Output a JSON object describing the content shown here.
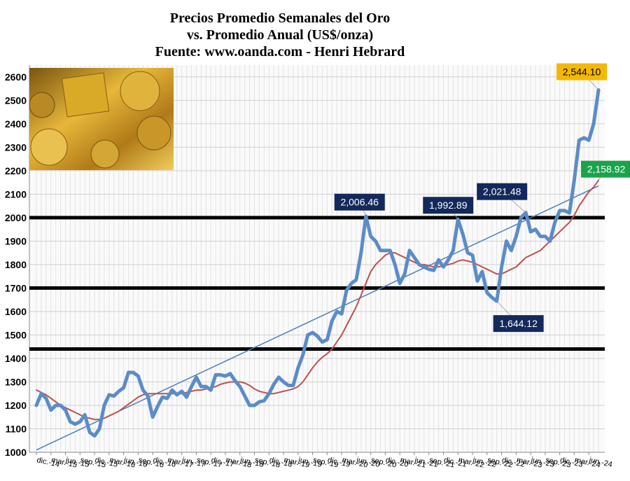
{
  "chart_data": {
    "type": "line",
    "title": [
      "Precios Promedio Semanales del Oro",
      "vs. Promedio Anual (US$/onza)",
      "Fuente: www.oanda.com - Henri Hebrard"
    ],
    "categories": [
      "dic.-14",
      null,
      null,
      "mar.-15",
      null,
      null,
      "jun.-15",
      null,
      null,
      "sep.-15",
      null,
      null,
      "dic.-15",
      null,
      null,
      "mar.-16",
      null,
      null,
      "jun.-16",
      null,
      null,
      "sep.-16",
      null,
      null,
      "dic.-16",
      null,
      null,
      "mar.-17",
      null,
      null,
      "jun.-17",
      null,
      null,
      "sep.-17",
      null,
      null,
      "dic.-17",
      null,
      null,
      "mar.-18",
      null,
      null,
      "jun.-18",
      null,
      null,
      "sep.-18",
      null,
      null,
      "dic.-18",
      null,
      null,
      "mar.-19",
      null,
      null,
      "jun.-19",
      null,
      null,
      "sep.-19",
      null,
      null,
      "dic.-19",
      null,
      null,
      "mar.-20",
      null,
      null,
      "jun.-20",
      null,
      null,
      "sep.-20",
      null,
      null,
      "dic.-20",
      null,
      null,
      "mar.-21",
      null,
      null,
      "jun.-21",
      null,
      null,
      "sep.-21",
      null,
      null,
      "dic.-21",
      null,
      null,
      "mar.-22",
      null,
      null,
      "jun.-22",
      null,
      null,
      "sep.-22",
      null,
      null,
      "dic.-22",
      null,
      null,
      "mar.-23",
      null,
      null,
      "jun.-23",
      null,
      null,
      "sep.-23",
      null,
      null,
      "dic.-23",
      null,
      null,
      "mar.-24",
      null,
      null,
      "jun.-24",
      null,
      null
    ],
    "series": [
      {
        "color": "#5b8cc8",
        "width": 5,
        "values": [
          1200,
          1250,
          1230,
          1180,
          1200,
          1200,
          1180,
          1130,
          1120,
          1130,
          1160,
          1085,
          1070,
          1100,
          1200,
          1245,
          1240,
          1260,
          1275,
          1340,
          1340,
          1325,
          1265,
          1240,
          1150,
          1195,
          1235,
          1230,
          1265,
          1245,
          1260,
          1235,
          1280,
          1320,
          1280,
          1280,
          1265,
          1330,
          1330,
          1325,
          1335,
          1305,
          1280,
          1240,
          1200,
          1200,
          1215,
          1220,
          1250,
          1290,
          1320,
          1300,
          1285,
          1285,
          1360,
          1415,
          1500,
          1510,
          1495,
          1470,
          1480,
          1560,
          1600,
          1590,
          1690,
          1720,
          1735,
          1850,
          2006.46,
          1920,
          1900,
          1860,
          1860,
          1860,
          1800,
          1720,
          1760,
          1860,
          1830,
          1800,
          1790,
          1780,
          1775,
          1820,
          1790,
          1820,
          1860,
          1992.89,
          1930,
          1850,
          1840,
          1730,
          1770,
          1680,
          1660,
          1644.12,
          1790,
          1900,
          1860,
          1920,
          2000,
          2021.48,
          1940,
          1950,
          1920,
          1920,
          1900,
          1980,
          2030,
          2030,
          2020,
          2160,
          2330,
          2340,
          2330,
          2400,
          2544.1
        ]
      },
      {
        "color": "#c0504d",
        "width": 2,
        "values": [
          1265,
          1255,
          1245,
          1230,
          1215,
          1200,
          1190,
          1180,
          1170,
          1160,
          1150,
          1145,
          1140,
          1140,
          1145,
          1155,
          1165,
          1175,
          1190,
          1205,
          1220,
          1235,
          1245,
          1250,
          1250,
          1250,
          1250,
          1250,
          1250,
          1250,
          1250,
          1255,
          1260,
          1265,
          1265,
          1270,
          1275,
          1280,
          1290,
          1295,
          1300,
          1300,
          1300,
          1295,
          1285,
          1270,
          1260,
          1255,
          1250,
          1250,
          1255,
          1260,
          1265,
          1270,
          1280,
          1300,
          1330,
          1360,
          1385,
          1405,
          1420,
          1440,
          1470,
          1500,
          1540,
          1580,
          1620,
          1670,
          1720,
          1770,
          1800,
          1820,
          1840,
          1850,
          1850,
          1840,
          1830,
          1820,
          1810,
          1800,
          1800,
          1795,
          1790,
          1790,
          1795,
          1800,
          1805,
          1815,
          1820,
          1815,
          1810,
          1800,
          1790,
          1780,
          1770,
          1760,
          1760,
          1770,
          1780,
          1790,
          1810,
          1830,
          1840,
          1850,
          1860,
          1880,
          1900,
          1920,
          1940,
          1960,
          1980,
          2010,
          2050,
          2080,
          2110,
          2130,
          2158.92
        ]
      }
    ],
    "trendline": {
      "color": "#4a7ebb",
      "values": [
        1010,
        2135
      ]
    },
    "hlines": {
      "color": "#000000",
      "values": [
        2000,
        1700,
        1440
      ]
    },
    "annotations": [
      {
        "text": "2,544.10",
        "value": 2544.1,
        "series": 0,
        "color": "#f5b800",
        "text_color": "#000000"
      },
      {
        "text": "2,158.92",
        "value": 2158.92,
        "series": 1,
        "color": "#1aa34a",
        "text_color": "#ffffff"
      },
      {
        "text": "2,006.46",
        "value": 2006.46,
        "series": 0,
        "color": "#13295b",
        "text_color": "#ffffff"
      },
      {
        "text": "1,992.89",
        "value": 1992.89,
        "series": 0,
        "color": "#13295b",
        "text_color": "#ffffff"
      },
      {
        "text": "2,021.48",
        "value": 2021.48,
        "series": 0,
        "color": "#13295b",
        "text_color": "#ffffff"
      },
      {
        "text": "1,644.12",
        "value": 1644.12,
        "series": 0,
        "color": "#13295b",
        "text_color": "#ffffff"
      }
    ],
    "ylim": [
      1000,
      2650
    ],
    "yticks": [
      1000,
      1100,
      1200,
      1300,
      1400,
      1500,
      1600,
      1700,
      1800,
      1900,
      2000,
      2100,
      2200,
      2300,
      2400,
      2500,
      2600
    ],
    "grid": true
  }
}
